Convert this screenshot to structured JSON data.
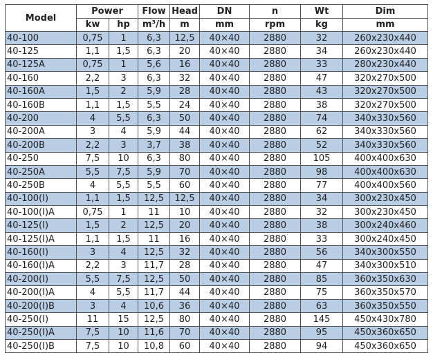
{
  "header": {
    "model": "Model",
    "power": "Power",
    "flow": "Flow",
    "head": "Head",
    "dn": "DN",
    "n": "n",
    "wt": "Wt",
    "dim": "Dim",
    "units": [
      "kw",
      "hp",
      "m³/h",
      "m",
      "mm",
      "rpm",
      "kg",
      "mm"
    ]
  },
  "colors": {
    "row_alt": "#b9cde5",
    "border": "#555555"
  },
  "rows": [
    [
      "40-100",
      "0,75",
      "1",
      "6,3",
      "12,5",
      "40×40",
      "2880",
      "32",
      "260x230x440"
    ],
    [
      "40-125",
      "1,1",
      "1,5",
      "6,3",
      "20",
      "40×40",
      "2880",
      "34",
      "260x230x440"
    ],
    [
      "40-125A",
      "0,75",
      "1",
      "5,6",
      "16",
      "40×40",
      "2880",
      "33",
      "280x230x440"
    ],
    [
      "40-160",
      "2,2",
      "3",
      "6,3",
      "32",
      "40×40",
      "2880",
      "47",
      "320x270x500"
    ],
    [
      "40-160A",
      "1,5",
      "2",
      "5,9",
      "28",
      "40×40",
      "2880",
      "43",
      "320x270x500"
    ],
    [
      "40-160B",
      "1,1",
      "1,5",
      "5,5",
      "24",
      "40×40",
      "2880",
      "38",
      "320x270x500"
    ],
    [
      "40-200",
      "4",
      "5,5",
      "6,3",
      "50",
      "40×40",
      "2880",
      "74",
      "340x330x560"
    ],
    [
      "40-200A",
      "3",
      "4",
      "5,9",
      "44",
      "40×40",
      "2880",
      "62",
      "340x330x560"
    ],
    [
      "40-200B",
      "2,2",
      "3",
      "3,7",
      "38",
      "40×40",
      "2880",
      "52",
      "340x330x560"
    ],
    [
      "40-250",
      "7,5",
      "10",
      "6,3",
      "80",
      "40×40",
      "2880",
      "105",
      "400x400x630"
    ],
    [
      "40-250A",
      "5,5",
      "7,5",
      "5,9",
      "70",
      "40×40",
      "2880",
      "98",
      "400x400x630"
    ],
    [
      "40-250B",
      "4",
      "5,5",
      "5,5",
      "60",
      "40×40",
      "2880",
      "77",
      "400x400x560"
    ],
    [
      "40-100(I)",
      "1,1",
      "1,5",
      "12,5",
      "12,5",
      "40×40",
      "2880",
      "34",
      "300x230x450"
    ],
    [
      "40-100(I)A",
      "0,75",
      "1",
      "11",
      "10",
      "40×40",
      "2880",
      "32",
      "300x230x450"
    ],
    [
      "40-125(I)",
      "1,5",
      "2",
      "12,5",
      "20",
      "40×40",
      "2880",
      "38",
      "300x240x460"
    ],
    [
      "40-125(I)A",
      "1,1",
      "1,5",
      "11",
      "16",
      "40×40",
      "2880",
      "33",
      "300x240x450"
    ],
    [
      "40-160(I)",
      "3",
      "4",
      "12,5",
      "32",
      "40×40",
      "2880",
      "56",
      "340x300x550"
    ],
    [
      "40-160(I)A",
      "2,2",
      "3",
      "11,7",
      "28",
      "40×40",
      "2880",
      "47",
      "340x300x510"
    ],
    [
      "40-200(I)",
      "5,5",
      "7,5",
      "12,5",
      "50",
      "40×40",
      "2880",
      "85",
      "360x350x630"
    ],
    [
      "40-200(I)A",
      "4",
      "5,5",
      "11,7",
      "44",
      "40×40",
      "2880",
      "75",
      "360x350x570"
    ],
    [
      "40-200(I)B",
      "3",
      "4",
      "10,6",
      "36",
      "40×40",
      "2880",
      "63",
      "360x350x550"
    ],
    [
      "40-250(I)",
      "11",
      "15",
      "12,5",
      "80",
      "40×40",
      "2880",
      "145",
      "450x430x780"
    ],
    [
      "40-250(I)A",
      "7,5",
      "10",
      "11,6",
      "70",
      "40×40",
      "2880",
      "95",
      "450x360x650"
    ],
    [
      "40-250(I)B",
      "7,5",
      "10",
      "10,8",
      "60",
      "40×40",
      "2880",
      "94",
      "450x360x650"
    ]
  ]
}
